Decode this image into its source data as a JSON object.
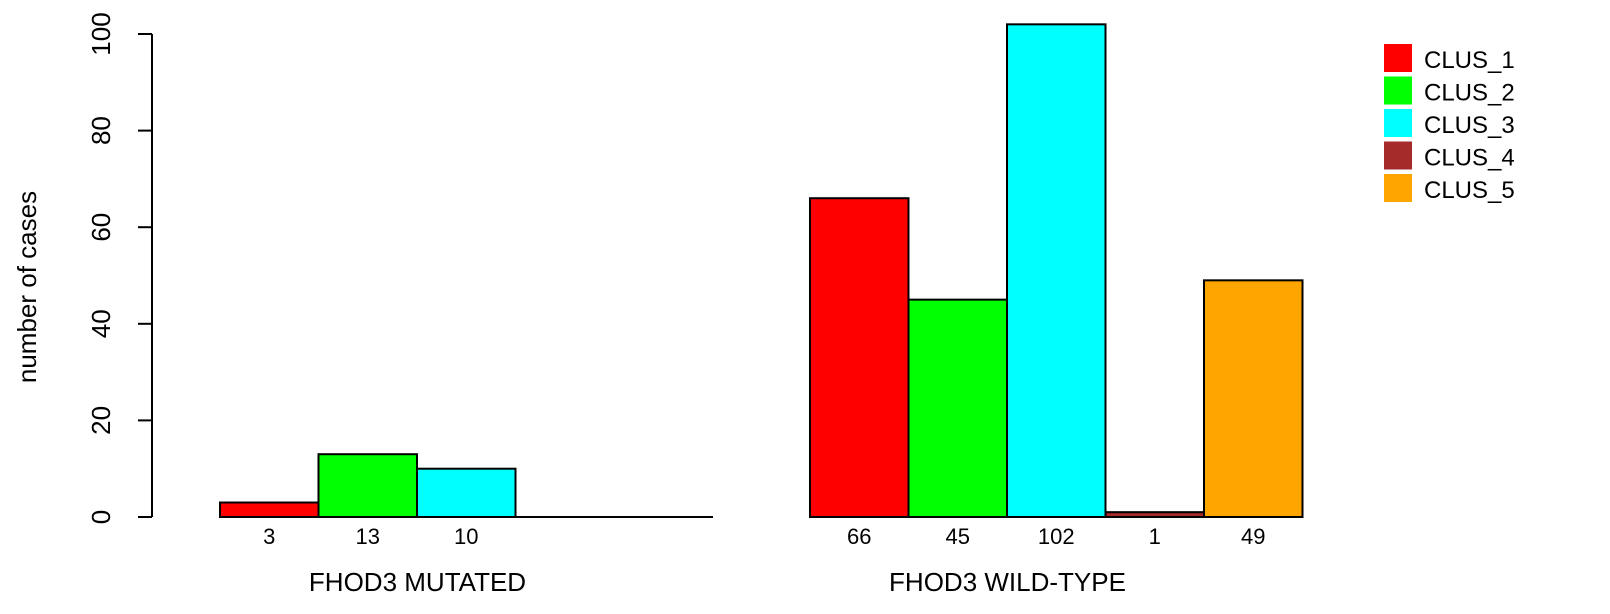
{
  "chart_data": {
    "type": "bar",
    "ylabel": "number of cases",
    "ylim": [
      0,
      100
    ],
    "yticks": [
      0,
      20,
      40,
      60,
      80,
      100
    ],
    "groups": [
      {
        "label": "FHOD3 MUTATED",
        "values": [
          3,
          13,
          10,
          null,
          null
        ],
        "value_labels": [
          "3",
          "13",
          "10",
          "",
          ""
        ]
      },
      {
        "label": "FHOD3 WILD-TYPE",
        "values": [
          66,
          45,
          102,
          1,
          49
        ],
        "value_labels": [
          "66",
          "45",
          "102",
          "1",
          "49"
        ]
      }
    ],
    "series": [
      {
        "name": "CLUS_1",
        "color": "#FF0000"
      },
      {
        "name": "CLUS_2",
        "color": "#00FF00"
      },
      {
        "name": "CLUS_3",
        "color": "#00FFFF"
      },
      {
        "name": "CLUS_4",
        "color": "#A52A2A"
      },
      {
        "name": "CLUS_5",
        "color": "#FFA500"
      }
    ],
    "legend": "top-right",
    "grid": false
  }
}
